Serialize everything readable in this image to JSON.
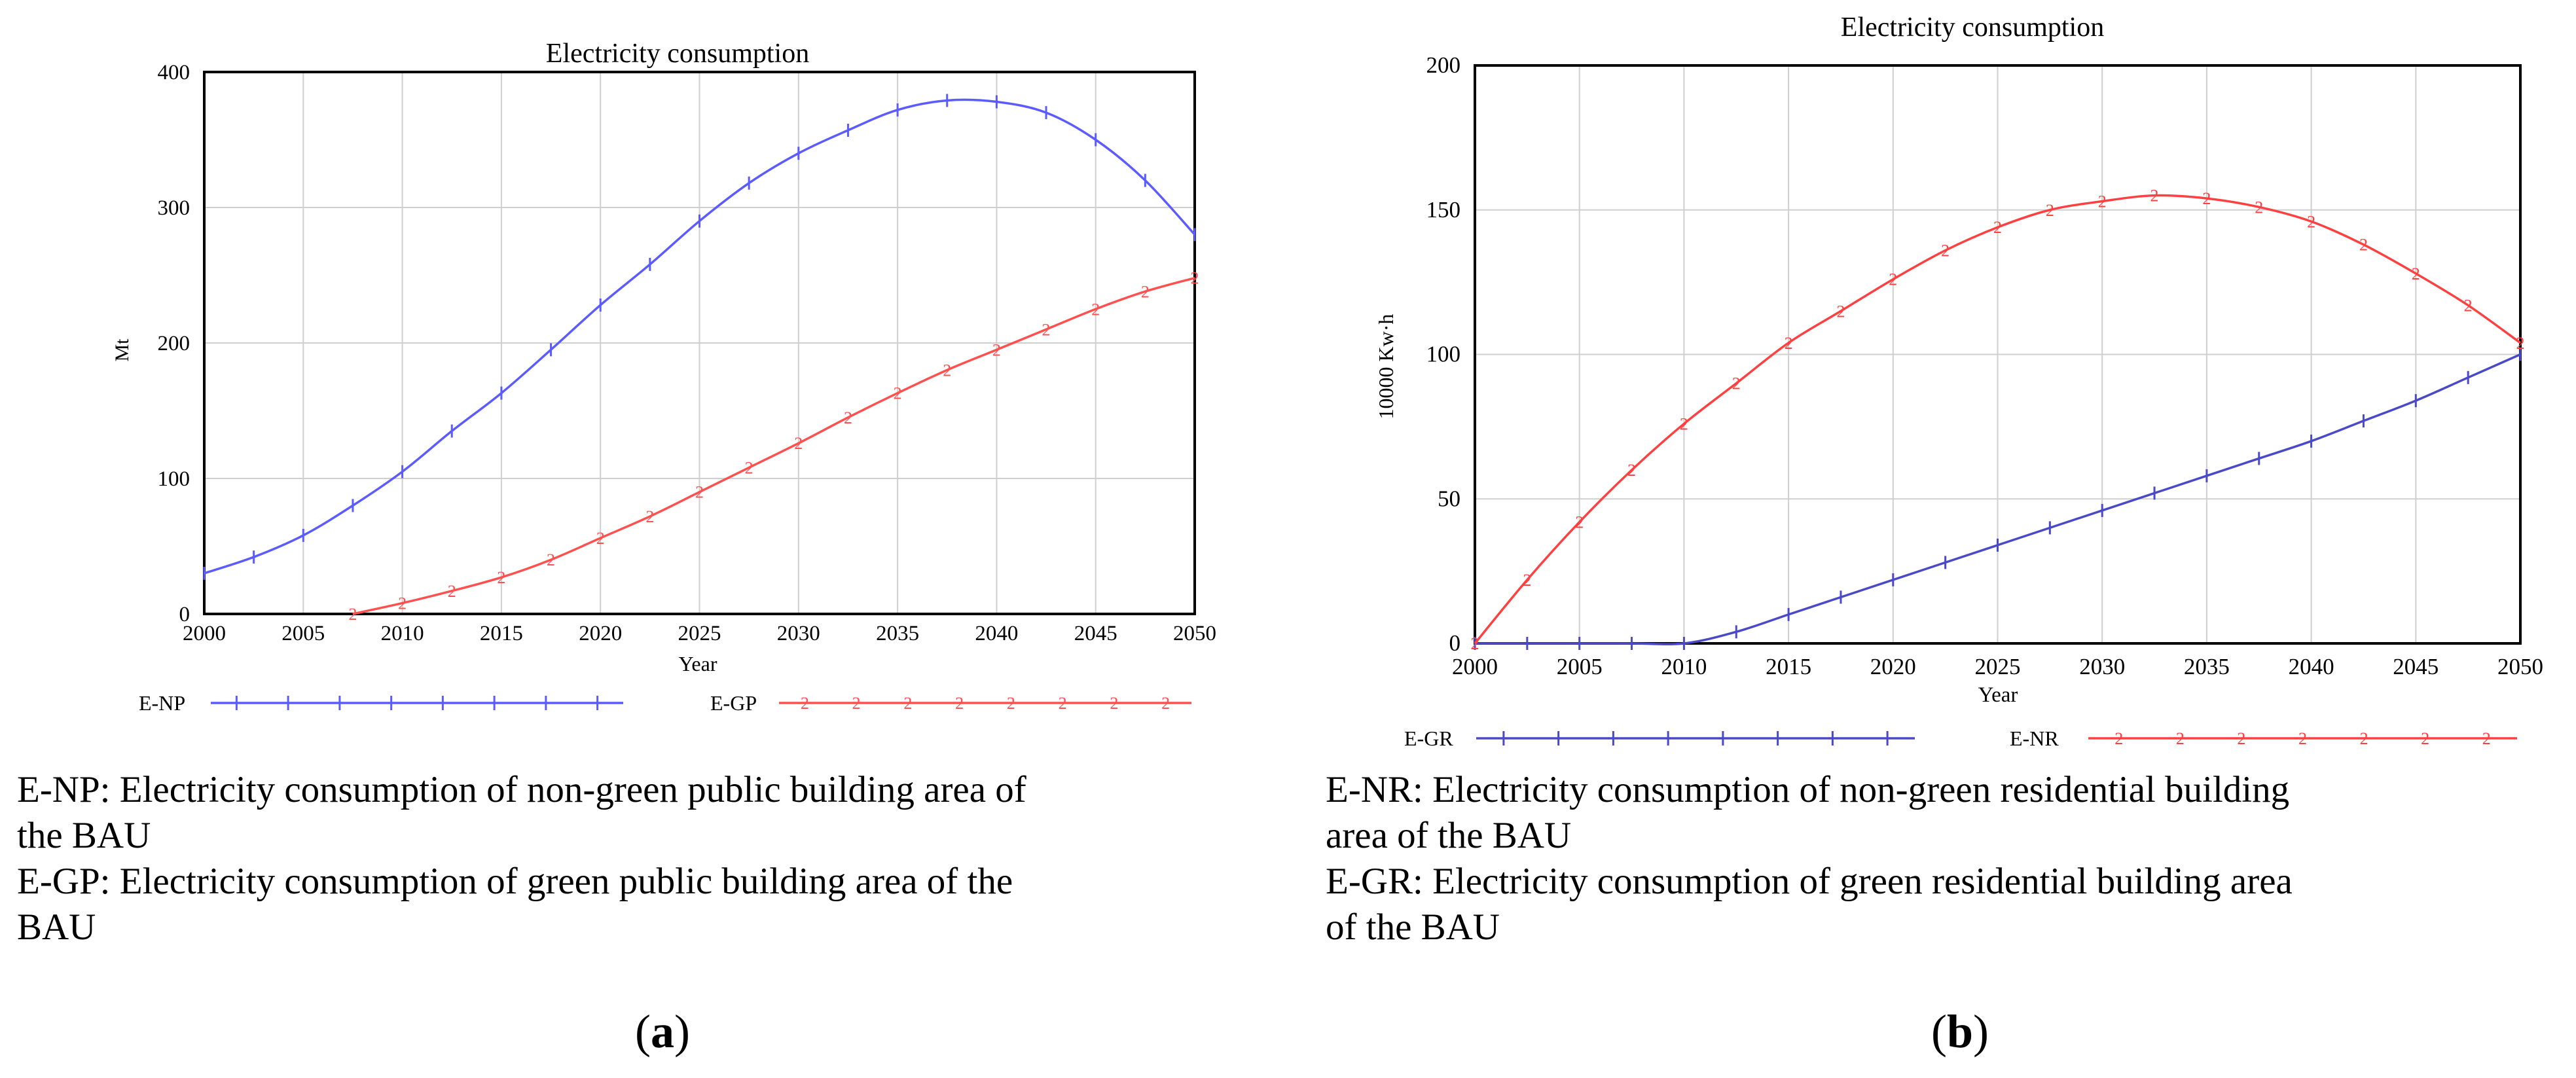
{
  "chart_data": [
    {
      "panel": "a",
      "type": "line",
      "title": "Electricity consumption",
      "xlabel": "Year",
      "ylabel": "Mt",
      "xlim": [
        2000,
        2050
      ],
      "ylim": [
        0,
        400
      ],
      "xticks": [
        2000,
        2005,
        2010,
        2015,
        2020,
        2025,
        2030,
        2035,
        2040,
        2045,
        2050
      ],
      "yticks": [
        0,
        100,
        200,
        300,
        400
      ],
      "grid": true,
      "legend_position": "bottom",
      "series": [
        {
          "name": "E-NP",
          "color": "#5b5bff",
          "marker": "+",
          "marker_label": "",
          "x": [
            2000,
            2002.5,
            2005,
            2007.5,
            2010,
            2012.5,
            2015,
            2017.5,
            2020,
            2022.5,
            2025,
            2027.5,
            2030,
            2032.5,
            2035,
            2037.5,
            2040,
            2042.5,
            2045,
            2047.5,
            2050
          ],
          "values": [
            30,
            42,
            58,
            80,
            105,
            135,
            163,
            195,
            228,
            258,
            290,
            318,
            340,
            357,
            372,
            379,
            378,
            370,
            350,
            320,
            280
          ]
        },
        {
          "name": "E-GP",
          "color": "#ff5050",
          "marker": "2",
          "marker_label": "2",
          "x": [
            2007.5,
            2010,
            2012.5,
            2015,
            2017.5,
            2020,
            2022.5,
            2025,
            2027.5,
            2030,
            2032.5,
            2035,
            2037.5,
            2040,
            2042.5,
            2045,
            2047.5,
            2050
          ],
          "values": [
            0,
            8,
            17,
            27,
            40,
            56,
            72,
            90,
            108,
            126,
            145,
            163,
            180,
            195,
            210,
            225,
            238,
            248
          ]
        }
      ]
    },
    {
      "panel": "b",
      "type": "line",
      "title": "Electricity consumption",
      "xlabel": "Year",
      "ylabel": "10000 Kw·h",
      "xlim": [
        2000,
        2050
      ],
      "ylim": [
        0,
        200
      ],
      "xticks": [
        2000,
        2005,
        2010,
        2015,
        2020,
        2025,
        2030,
        2035,
        2040,
        2045,
        2050
      ],
      "yticks": [
        0,
        50,
        100,
        150,
        200
      ],
      "grid": true,
      "legend_position": "bottom",
      "series": [
        {
          "name": "E-GR",
          "color": "#4a4ac8",
          "marker": "+",
          "marker_label": "",
          "x": [
            2000,
            2002.5,
            2005,
            2007.5,
            2010,
            2012.5,
            2015,
            2017.5,
            2020,
            2022.5,
            2025,
            2027.5,
            2030,
            2032.5,
            2035,
            2037.5,
            2040,
            2042.5,
            2045,
            2047.5,
            2050
          ],
          "values": [
            0,
            0,
            0,
            0,
            0,
            4,
            10,
            16,
            22,
            28,
            34,
            40,
            46,
            52,
            58,
            64,
            70,
            77,
            84,
            92,
            100
          ]
        },
        {
          "name": "E-NR",
          "color": "#ff4040",
          "marker": "2",
          "marker_label": "2",
          "x": [
            2000,
            2002.5,
            2005,
            2007.5,
            2010,
            2012.5,
            2015,
            2017.5,
            2020,
            2022.5,
            2025,
            2027.5,
            2030,
            2032.5,
            2035,
            2037.5,
            2040,
            2042.5,
            2045,
            2047.5,
            2050
          ],
          "values": [
            0,
            22,
            42,
            60,
            76,
            90,
            104,
            115,
            126,
            136,
            144,
            150,
            153,
            155,
            154,
            151,
            146,
            138,
            128,
            117,
            104
          ]
        }
      ]
    }
  ],
  "captions": {
    "a": {
      "lines": [
        "E-NP: Electricity consumption of non-green public building area of",
        "the BAU",
        "E-GP: Electricity consumption of green public building area of the",
        "BAU"
      ],
      "label_open": "(",
      "label_letter": "a",
      "label_close": ")"
    },
    "b": {
      "lines": [
        "E-NR: Electricity consumption of non-green residential building",
        "area of the BAU",
        "E-GR: Electricity consumption of green residential building area",
        "of the BAU"
      ],
      "label_open": "(",
      "label_letter": "b",
      "label_close": ")"
    }
  }
}
